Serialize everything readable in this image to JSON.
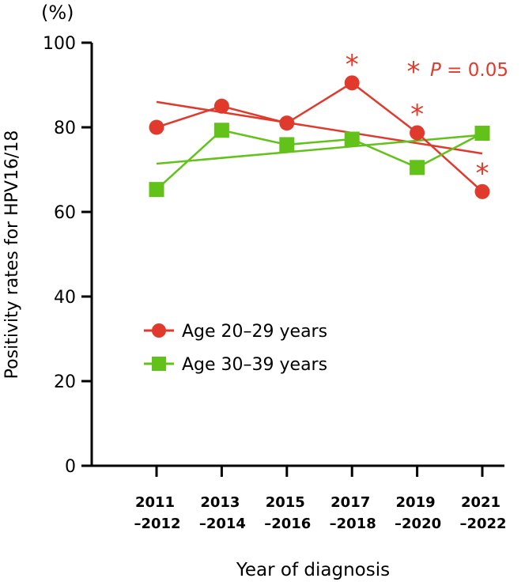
{
  "chart_data": {
    "type": "line",
    "unit_label": "(%)",
    "ylabel": "Positivity rates for HPV16/18",
    "xlabel": "Year of diagnosis",
    "ylim": [
      0,
      100
    ],
    "yticks": [
      0,
      20,
      40,
      60,
      80,
      100
    ],
    "categories": [
      {
        "line1": "2011",
        "line2": "–2012"
      },
      {
        "line1": "2013",
        "line2": "–2014"
      },
      {
        "line1": "2015",
        "line2": "–2016"
      },
      {
        "line1": "2017",
        "line2": "–2018"
      },
      {
        "line1": "2019",
        "line2": "–2020"
      },
      {
        "line1": "2021",
        "line2": "–2022"
      }
    ],
    "series": [
      {
        "name": "Age 20–29 years",
        "color": "#e03a2c",
        "marker": "circle",
        "values": [
          80,
          85,
          81,
          90.5,
          78.7,
          64.8
        ],
        "trend": [
          86,
          73.8
        ],
        "significant": [
          false,
          false,
          false,
          true,
          true,
          true
        ]
      },
      {
        "name": "Age 30–39 years",
        "color": "#62c21a",
        "marker": "square",
        "values": [
          65.3,
          79.3,
          75.9,
          77.2,
          70.5,
          78.6
        ],
        "trend": [
          71.4,
          78.2
        ]
      }
    ],
    "annotation": {
      "star": "*",
      "p_italic": "P",
      "p_rest": " = 0.05",
      "color": "#e03a2c"
    }
  }
}
